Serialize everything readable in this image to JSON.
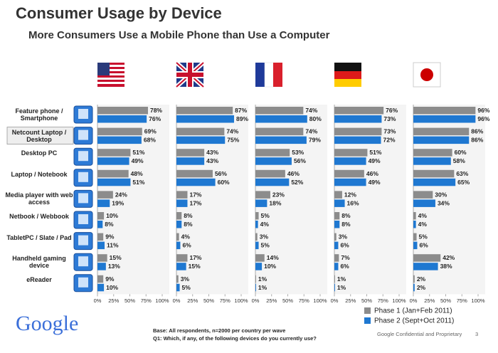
{
  "chart_data": {
    "type": "bar",
    "orientation": "horizontal",
    "title": "Consumer Usage by Device",
    "subtitle": "More Consumers Use a Mobile Phone than Use a Computer",
    "categories": [
      "Feature phone / Smartphone",
      "Netcount Laptop / Desktop",
      "Desktop PC",
      "Laptop / Notebook",
      "Media player with web access",
      "Netbook / Webbook",
      "TabletPC / Slate / Pad",
      "Handheld gaming device",
      "eReader"
    ],
    "series": [
      {
        "name": "Phase 1 (Jan+Feb 2011)",
        "color": "#8c8c8c"
      },
      {
        "name": "Phase 2 (Sept+Oct 2011)",
        "color": "#1f78d1"
      }
    ],
    "xlim": [
      0,
      100
    ],
    "xticks": [
      {
        "value": 0,
        "label": "0%"
      },
      {
        "value": 25,
        "label": "25%"
      },
      {
        "value": 50,
        "label": "50%"
      },
      {
        "value": 75,
        "label": "75%"
      },
      {
        "value": 100,
        "label": "100%"
      }
    ],
    "panels": [
      {
        "series": [
          {
            "values": [
              78,
              69,
              51,
              48,
              24,
              10,
              9,
              15,
              9
            ],
            "value_labels": [
              "78%",
              "69%",
              "51%",
              "48%",
              "24%",
              "10%",
              "9%",
              "15%",
              "9%"
            ]
          },
          {
            "values": [
              76,
              68,
              49,
              51,
              19,
              8,
              11,
              13,
              10
            ],
            "value_labels": [
              "76%",
              "68%",
              "49%",
              "51%",
              "19%",
              "8%",
              "11%",
              "13%",
              "10%"
            ]
          }
        ]
      },
      {
        "series": [
          {
            "values": [
              87,
              74,
              43,
              56,
              17,
              8,
              4,
              17,
              3
            ],
            "value_labels": [
              "87%",
              "74%",
              "43%",
              "56%",
              "17%",
              "8%",
              "4%",
              "17%",
              "3%"
            ]
          },
          {
            "values": [
              89,
              75,
              43,
              60,
              17,
              8,
              6,
              15,
              5
            ],
            "value_labels": [
              "89%",
              "75%",
              "43%",
              "60%",
              "17%",
              "8%",
              "6%",
              "15%",
              "5%"
            ]
          }
        ]
      },
      {
        "series": [
          {
            "values": [
              74,
              74,
              53,
              46,
              23,
              5,
              3,
              14,
              1
            ],
            "value_labels": [
              "74%",
              "74%",
              "53%",
              "46%",
              "23%",
              "5%",
              "3%",
              "14%",
              "1%"
            ]
          },
          {
            "values": [
              80,
              79,
              56,
              52,
              18,
              4,
              5,
              10,
              1
            ],
            "value_labels": [
              "80%",
              "79%",
              "56%",
              "52%",
              "18%",
              "4%",
              "5%",
              "10%",
              "1%"
            ]
          }
        ]
      },
      {
        "series": [
          {
            "values": [
              76,
              73,
              51,
              46,
              12,
              8,
              3,
              7,
              1
            ],
            "value_labels": [
              "76%",
              "73%",
              "51%",
              "46%",
              "12%",
              "8%",
              "3%",
              "7%",
              "1%"
            ]
          },
          {
            "values": [
              73,
              72,
              49,
              49,
              16,
              8,
              6,
              6,
              1
            ],
            "value_labels": [
              "73%",
              "72%",
              "49%",
              "49%",
              "16%",
              "8%",
              "6%",
              "6%",
              "1%"
            ]
          }
        ]
      },
      {
        "series": [
          {
            "values": [
              96,
              86,
              60,
              63,
              30,
              4,
              5,
              42,
              2
            ],
            "value_labels": [
              "96%",
              "86%",
              "60%",
              "63%",
              "30%",
              "4%",
              "5%",
              "42%",
              "2%"
            ]
          },
          {
            "values": [
              96,
              86,
              58,
              65,
              34,
              4,
              6,
              38,
              2
            ],
            "value_labels": [
              "96%",
              "86%",
              "58%",
              "65%",
              "34%",
              "4%",
              "6%",
              "38%",
              "2%"
            ]
          }
        ]
      }
    ]
  },
  "logo": "Google",
  "footer": {
    "base": "Base:  All respondents, n=2000 per country per wave",
    "question": "Q1: Which, if any, of the following devices do you currently use?",
    "confidential": "Google Confidential and Proprietary",
    "page": "3"
  }
}
